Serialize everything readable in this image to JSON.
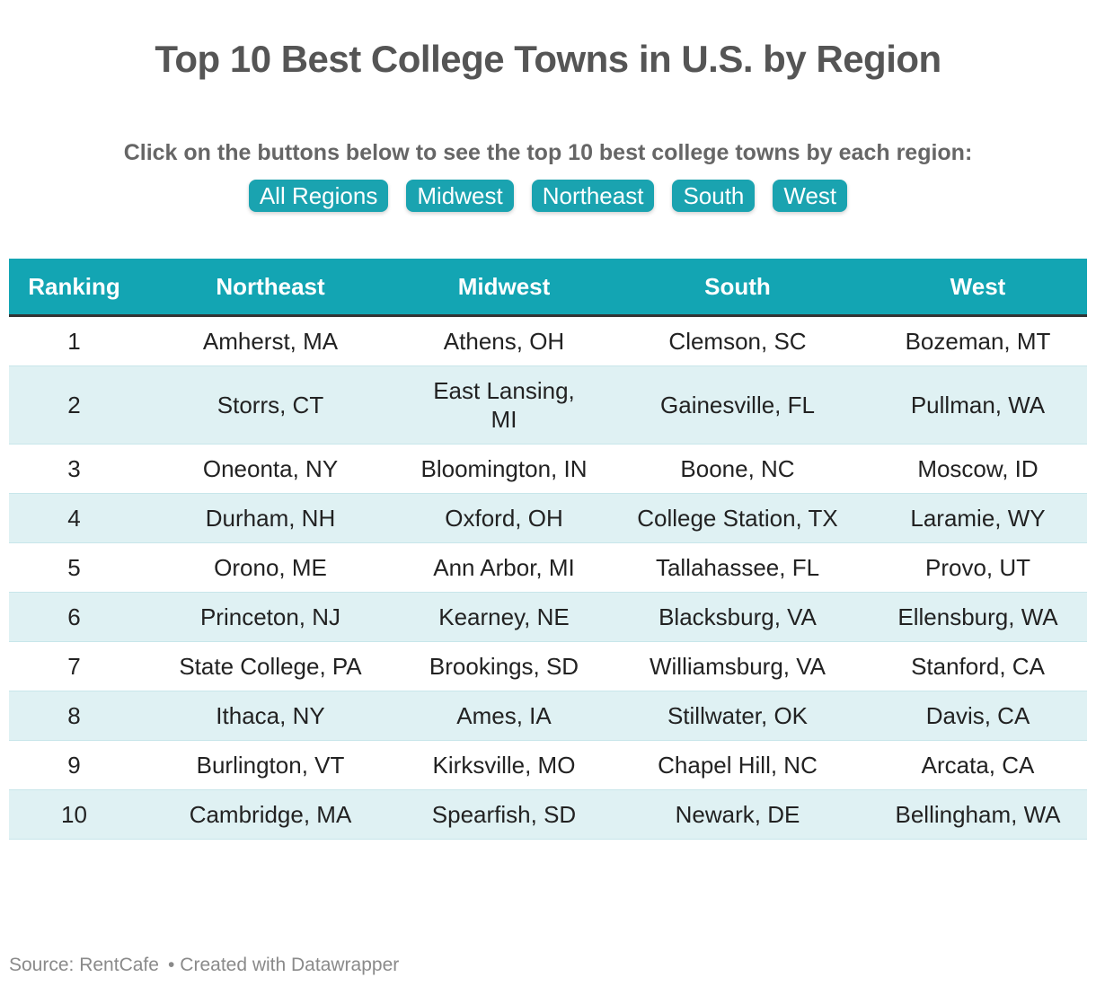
{
  "title": "Top 10 Best College Towns in U.S. by Region",
  "instruction": "Click on the buttons below to see the top 10 best college towns by each region:",
  "buttons": [
    "All Regions",
    "Midwest",
    "Northeast",
    "South",
    "West"
  ],
  "colors": {
    "accent": "#13a5b3",
    "row_alt": "#dff1f3",
    "title": "#555555"
  },
  "chart_data": {
    "type": "table",
    "title": "Top 10 Best College Towns in U.S. by Region",
    "columns": [
      "Ranking",
      "Northeast",
      "Midwest",
      "South",
      "West"
    ],
    "rows": [
      [
        "1",
        "Amherst, MA",
        "Athens, OH",
        "Clemson, SC",
        "Bozeman, MT"
      ],
      [
        "2",
        "Storrs, CT",
        "East Lansing, MI",
        "Gainesville, FL",
        "Pullman, WA"
      ],
      [
        "3",
        "Oneonta, NY",
        "Bloomington, IN",
        "Boone, NC",
        "Moscow, ID"
      ],
      [
        "4",
        "Durham, NH",
        "Oxford, OH",
        "College Station, TX",
        "Laramie, WY"
      ],
      [
        "5",
        "Orono, ME",
        "Ann Arbor, MI",
        "Tallahassee, FL",
        "Provo, UT"
      ],
      [
        "6",
        "Princeton, NJ",
        "Kearney, NE",
        "Blacksburg, VA",
        "Ellensburg, WA"
      ],
      [
        "7",
        "State College, PA",
        "Brookings, SD",
        "Williamsburg, VA",
        "Stanford, CA"
      ],
      [
        "8",
        "Ithaca, NY",
        "Ames, IA",
        "Stillwater, OK",
        "Davis, CA"
      ],
      [
        "9",
        "Burlington, VT",
        "Kirksville, MO",
        "Chapel Hill, NC",
        "Arcata, CA"
      ],
      [
        "10",
        "Cambridge, MA",
        "Spearfish, SD",
        "Newark, DE",
        "Bellingham, WA"
      ]
    ]
  },
  "footer": {
    "source": "Source: RentCafe",
    "separator": "•",
    "credit": "Created with Datawrapper"
  }
}
